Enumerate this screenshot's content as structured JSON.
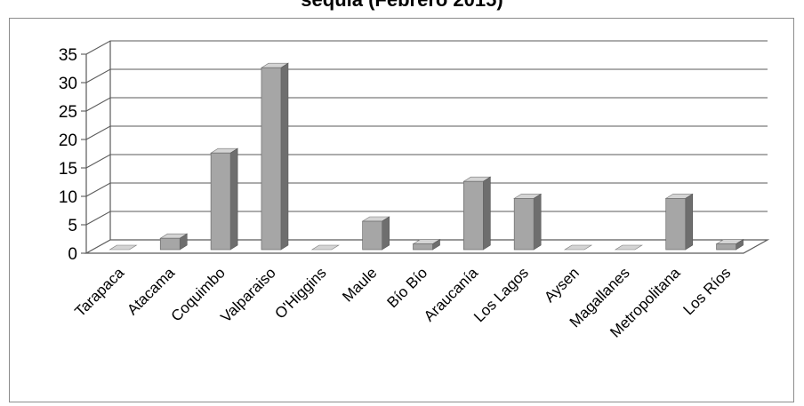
{
  "chart_data": {
    "type": "bar",
    "title": "sequía (Febrero 2015)",
    "categories": [
      "Tarapaca",
      "Atacama",
      "Coquimbo",
      "Valparaiso",
      "O'Higgins",
      "Maule",
      "Bío Bío",
      "Araucanía",
      "Los Lagos",
      "Aysen",
      "Magallanes",
      "Metropolitana",
      "Los Ríos"
    ],
    "values": [
      0,
      2,
      17,
      32,
      0,
      5,
      1,
      12,
      9,
      0,
      0,
      9,
      1
    ],
    "yticks": [
      "0",
      "5",
      "10",
      "15",
      "20",
      "25",
      "30",
      "35"
    ],
    "ylim": [
      0,
      35
    ],
    "grid": true,
    "legend": "none",
    "colors": {
      "bar_front": "#a6a6a6",
      "bar_side": "#6e6e6e",
      "bar_top": "#d4d4d4",
      "grid": "#5a5a5a",
      "border": "#8c8c8c"
    }
  }
}
